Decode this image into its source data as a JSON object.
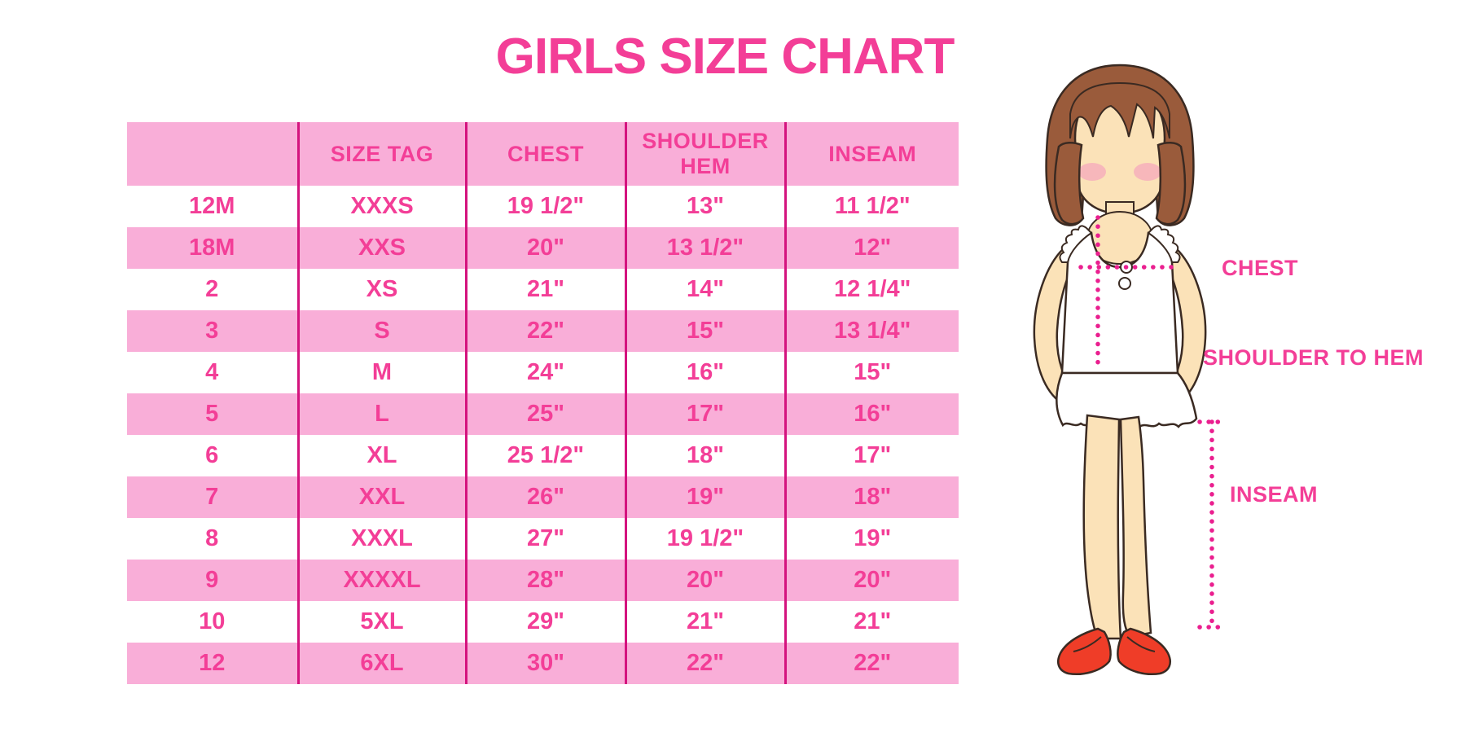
{
  "title": "GIRLS SIZE CHART",
  "colors": {
    "accent_pink": "#F33E97",
    "row_band_pink": "#F9AED8",
    "divider_magenta": "#D4137E",
    "dotted_line_pink": "#EA1F8F",
    "hair_brown": "#9A5B3B",
    "skin": "#FBE2B8",
    "shoe_red": "#EF3D28"
  },
  "chart_data": {
    "type": "table",
    "title": "GIRLS SIZE CHART",
    "columns": [
      "",
      "SIZE TAG",
      "CHEST",
      "SHOULDER HEM",
      "INSEAM"
    ],
    "rows": [
      [
        "12M",
        "XXXS",
        "19 1/2\"",
        "13\"",
        "11 1/2\""
      ],
      [
        "18M",
        "XXS",
        "20\"",
        "13 1/2\"",
        "12\""
      ],
      [
        "2",
        "XS",
        "21\"",
        "14\"",
        "12 1/4\""
      ],
      [
        "3",
        "S",
        "22\"",
        "15\"",
        "13 1/4\""
      ],
      [
        "4",
        "M",
        "24\"",
        "16\"",
        "15\""
      ],
      [
        "5",
        "L",
        "25\"",
        "17\"",
        "16\""
      ],
      [
        "6",
        "XL",
        "25 1/2\"",
        "18\"",
        "17\""
      ],
      [
        "7",
        "XXL",
        "26\"",
        "19\"",
        "18\""
      ],
      [
        "8",
        "XXXL",
        "27\"",
        "19 1/2\"",
        "19\""
      ],
      [
        "9",
        "XXXXL",
        "28\"",
        "20\"",
        "20\""
      ],
      [
        "10",
        "5XL",
        "29\"",
        "21\"",
        "21\""
      ],
      [
        "12",
        "6XL",
        "30\"",
        "22\"",
        "22\""
      ]
    ]
  },
  "diagram": {
    "labels": {
      "chest": "CHEST",
      "shoulder_to_hem": "SHOULDER TO HEM",
      "inseam": "INSEAM"
    }
  }
}
